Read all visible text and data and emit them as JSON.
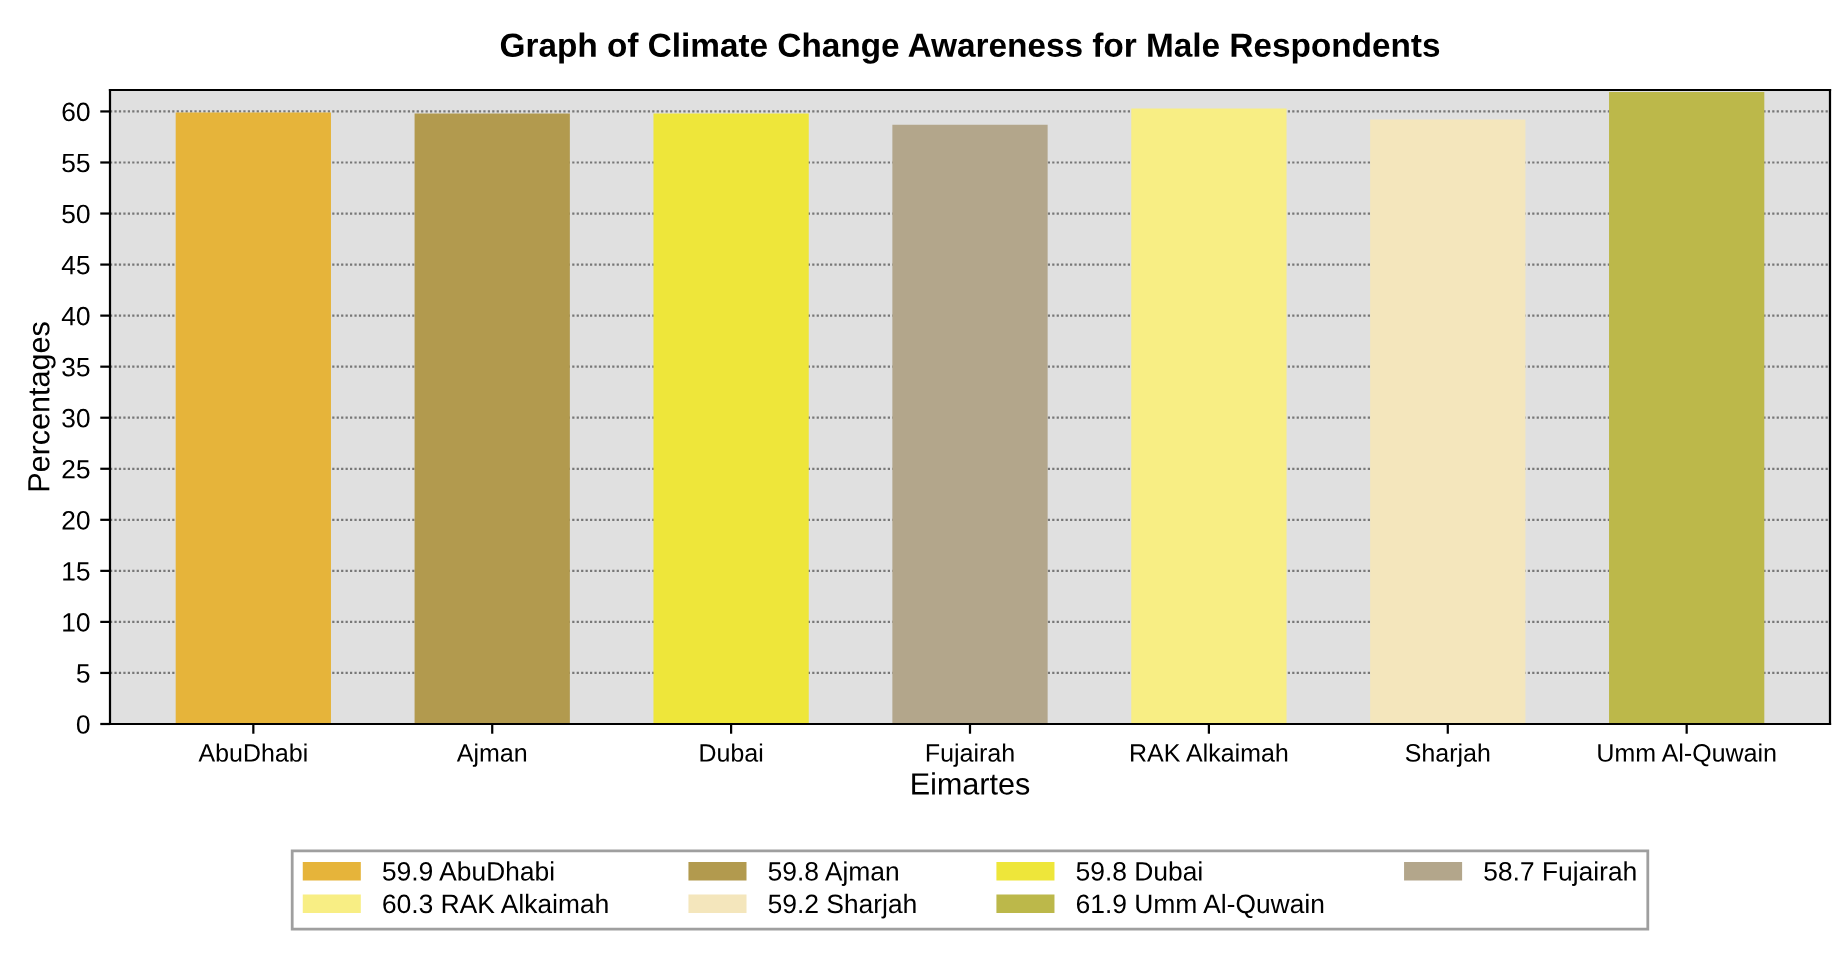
{
  "chart_data": {
    "type": "bar",
    "title": "Graph of Climate Change Awareness for Male Respondents",
    "xlabel": "Eimartes",
    "ylabel": "Percentages",
    "categories": [
      "AbuDhabi",
      "Ajman",
      "Dubai",
      "Fujairah",
      "RAK Alkaimah",
      "Sharjah",
      "Umm Al-Quwain"
    ],
    "series": [
      {
        "name": "59.9 AbuDhabi",
        "color": "#e6b43a",
        "values": [
          59.9,
          null,
          null,
          null,
          null,
          null,
          null
        ]
      },
      {
        "name": "59.8 Ajman",
        "color": "#b29a4e",
        "values": [
          null,
          59.8,
          null,
          null,
          null,
          null,
          null
        ]
      },
      {
        "name": "59.8 Dubai",
        "color": "#eee63a",
        "values": [
          null,
          null,
          59.8,
          null,
          null,
          null,
          null
        ]
      },
      {
        "name": "58.7 Fujairah",
        "color": "#b3a68b",
        "values": [
          null,
          null,
          null,
          58.7,
          null,
          null,
          null
        ]
      },
      {
        "name": "60.3 RAK Alkaimah",
        "color": "#f8ee84",
        "values": [
          null,
          null,
          null,
          null,
          60.3,
          null,
          null
        ]
      },
      {
        "name": "59.2 Sharjah",
        "color": "#f4e6bc",
        "values": [
          null,
          null,
          null,
          null,
          null,
          59.2,
          null
        ]
      },
      {
        "name": "61.9 Umm Al-Quwain",
        "color": "#bcb84a",
        "values": [
          null,
          null,
          null,
          null,
          null,
          null,
          61.9
        ]
      }
    ],
    "ylim": [
      0,
      62.1
    ],
    "yticks": [
      0,
      5,
      10,
      15,
      20,
      25,
      30,
      35,
      40,
      45,
      50,
      55,
      60
    ],
    "grid": "y",
    "legend": "bottom"
  }
}
